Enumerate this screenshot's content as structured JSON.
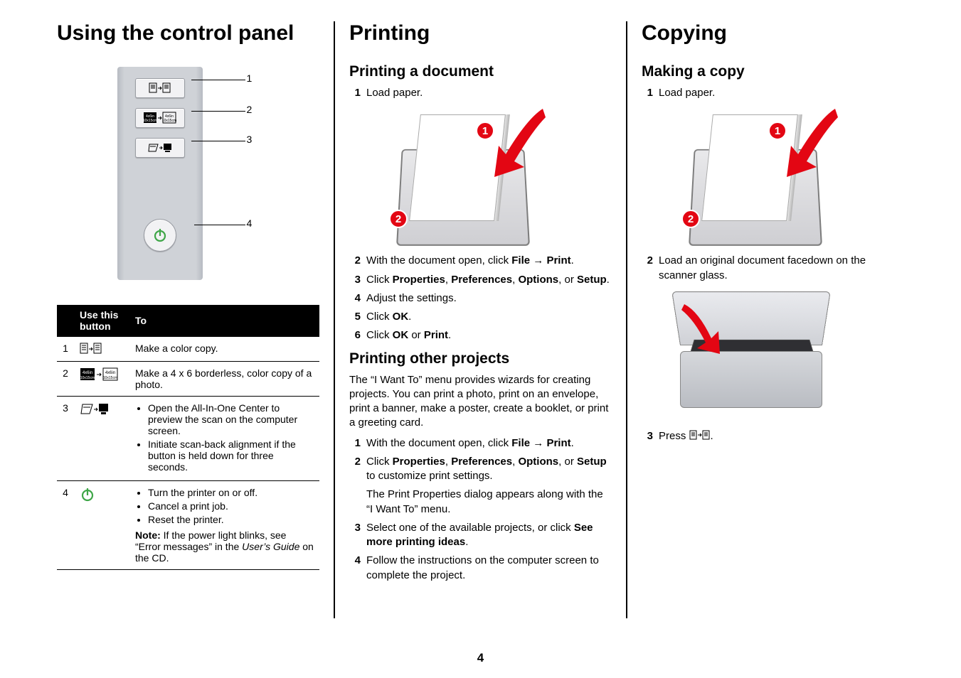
{
  "page_number": "4",
  "columns": {
    "control_panel": {
      "title": "Using the control panel",
      "diagram_labels": [
        "1",
        "2",
        "3",
        "4"
      ],
      "table": {
        "head_button": "Use this button",
        "head_to": "To",
        "rows": [
          {
            "num": "1",
            "to_plain": "Make a color copy."
          },
          {
            "num": "2",
            "to_plain": "Make a 4 x 6 borderless, color copy of a photo."
          },
          {
            "num": "3",
            "bullets": [
              "Open the All-In-One Center to preview the scan on the computer screen.",
              "Initiate scan-back alignment if the button is held down for three seconds."
            ]
          },
          {
            "num": "4",
            "bullets": [
              "Turn the printer on or off.",
              "Cancel a print job.",
              "Reset the printer."
            ],
            "note_html": "<b>Note:</b> If the power light blinks, see “Error messages” in the <i>User’s Guide</i> on the CD."
          }
        ]
      }
    },
    "printing": {
      "title": "Printing",
      "doc_heading": "Printing a document",
      "doc_steps": [
        {
          "n": "1",
          "html": "Load paper."
        },
        {
          "n": "2",
          "html": "With the document open, click <b>File</b> &rarr; <b>Print</b>."
        },
        {
          "n": "3",
          "html": "Click <b>Properties</b>, <b>Preferences</b>, <b>Options</b>, or <b>Setup</b>."
        },
        {
          "n": "4",
          "html": "Adjust the settings."
        },
        {
          "n": "5",
          "html": "Click <b>OK</b>."
        },
        {
          "n": "6",
          "html": "Click <b>OK</b> or <b>Print</b>."
        }
      ],
      "proj_heading": "Printing other projects",
      "proj_intro": "The “I Want To” menu provides wizards for creating projects. You can print a photo, print on an envelope, print a banner, make a poster, create a booklet, or print a greeting card.",
      "proj_steps": [
        {
          "n": "1",
          "html": "With the document open, click <b>File</b> &rarr; <b>Print</b>."
        },
        {
          "n": "2",
          "html": "Click <b>Properties</b>, <b>Preferences</b>, <b>Options</b>, or <b>Setup</b> to customize print settings.",
          "sub": "The Print Properties dialog appears along with the “I Want To” menu."
        },
        {
          "n": "3",
          "html": "Select one of the available projects, or click <b>See more printing ideas</b>."
        },
        {
          "n": "4",
          "html": "Follow the instructions on the computer screen to complete the project."
        }
      ]
    },
    "copying": {
      "title": "Copying",
      "heading": "Making a copy",
      "steps": [
        {
          "n": "1",
          "html": "Load paper."
        },
        {
          "n": "2",
          "html": "Load an original document facedown on the scanner glass."
        },
        {
          "n": "3",
          "html": "Press <span class=\"press-inline\"><svg width=\"30\" height=\"18\"><rect x=\"1\" y=\"2\" width=\"9\" height=\"12\" fill=\"none\" stroke=\"#000\"/><line x1=\"3\" y1=\"5\" x2=\"8\" y2=\"5\" stroke=\"#000\"/><line x1=\"3\" y1=\"7\" x2=\"8\" y2=\"7\" stroke=\"#000\"/><line x1=\"3\" y1=\"9\" x2=\"8\" y2=\"9\" stroke=\"#000\"/><path d=\"M12 8 L17 8 M15 6 L17 8 L15 10\" fill=\"none\" stroke=\"#000\"/><rect x=\"19\" y=\"2\" width=\"9\" height=\"12\" fill=\"none\" stroke=\"#000\"/><line x1=\"21\" y1=\"5\" x2=\"26\" y2=\"5\" stroke=\"#000\"/><line x1=\"21\" y1=\"7\" x2=\"26\" y2=\"7\" stroke=\"#000\"/><line x1=\"21\" y1=\"9\" x2=\"26\" y2=\"9\" stroke=\"#000\"/></svg></span>."
        }
      ]
    }
  },
  "colors": {
    "accent_red": "#e30613",
    "panel_bg_light": "#cfd2d7",
    "panel_bg_dark": "#b7bbc2",
    "power_green": "#3fa648"
  }
}
